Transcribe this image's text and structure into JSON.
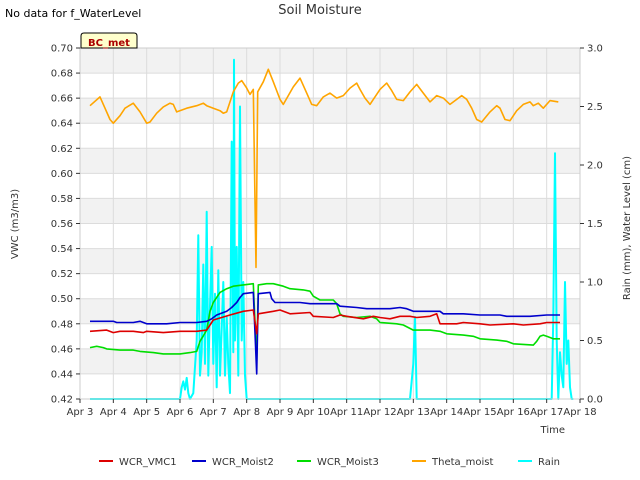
{
  "header": {
    "nodata_note": "No data for f_WaterLevel",
    "badge": "BC_met"
  },
  "chart_data": {
    "type": "line",
    "title": "Soil Moisture",
    "xlabel": "Time",
    "ylabel": "VWC (m3/m3)",
    "y2label": "Rain (mm), Water Level (cm)",
    "xlim": [
      0,
      15
    ],
    "ylim": [
      0.42,
      0.7
    ],
    "y2lim": [
      0.0,
      3.0
    ],
    "x_ticks": [
      "Apr 3",
      "Apr 4",
      "Apr 5",
      "Apr 6",
      "Apr 7",
      "Apr 8",
      "Apr 9",
      "Apr 10",
      "Apr 11",
      "Apr 12",
      "Apr 13",
      "Apr 14",
      "Apr 15",
      "Apr 16",
      "Apr 17",
      "Apr 18"
    ],
    "y_ticks": [
      0.42,
      0.44,
      0.46,
      0.48,
      0.5,
      0.52,
      0.54,
      0.56,
      0.58,
      0.6,
      0.62,
      0.64,
      0.66,
      0.68,
      0.7
    ],
    "y2_ticks": [
      0.0,
      0.5,
      1.0,
      1.5,
      2.0,
      2.5,
      3.0
    ],
    "grid": true,
    "legend_position": "bottom",
    "series": [
      {
        "name": "WCR_VMC1",
        "color": "#dd0000",
        "axis": "left",
        "points": [
          [
            0.3,
            0.474
          ],
          [
            0.8,
            0.475
          ],
          [
            1.0,
            0.473
          ],
          [
            1.2,
            0.474
          ],
          [
            1.6,
            0.474
          ],
          [
            1.9,
            0.473
          ],
          [
            2.0,
            0.474
          ],
          [
            2.5,
            0.473
          ],
          [
            3.0,
            0.474
          ],
          [
            3.5,
            0.474
          ],
          [
            3.8,
            0.475
          ],
          [
            4.0,
            0.483
          ],
          [
            4.5,
            0.487
          ],
          [
            4.9,
            0.49
          ],
          [
            5.2,
            0.491
          ],
          [
            5.3,
            0.472
          ],
          [
            5.35,
            0.488
          ],
          [
            5.8,
            0.49
          ],
          [
            6.0,
            0.491
          ],
          [
            6.3,
            0.488
          ],
          [
            6.9,
            0.489
          ],
          [
            7.0,
            0.486
          ],
          [
            7.6,
            0.485
          ],
          [
            7.8,
            0.487
          ],
          [
            8.0,
            0.486
          ],
          [
            8.5,
            0.484
          ],
          [
            8.8,
            0.486
          ],
          [
            9.0,
            0.485
          ],
          [
            9.3,
            0.484
          ],
          [
            9.6,
            0.486
          ],
          [
            9.9,
            0.486
          ],
          [
            10.1,
            0.485
          ],
          [
            10.5,
            0.486
          ],
          [
            10.7,
            0.488
          ],
          [
            10.8,
            0.48
          ],
          [
            11.3,
            0.48
          ],
          [
            11.5,
            0.481
          ],
          [
            12.0,
            0.48
          ],
          [
            12.3,
            0.479
          ],
          [
            13.0,
            0.48
          ],
          [
            13.3,
            0.479
          ],
          [
            13.8,
            0.48
          ],
          [
            14.0,
            0.481
          ],
          [
            14.4,
            0.481
          ]
        ]
      },
      {
        "name": "WCR_Moist2",
        "color": "#0000cc",
        "axis": "left",
        "points": [
          [
            0.3,
            0.482
          ],
          [
            1.0,
            0.482
          ],
          [
            1.1,
            0.481
          ],
          [
            1.6,
            0.481
          ],
          [
            1.8,
            0.482
          ],
          [
            2.0,
            0.48
          ],
          [
            2.6,
            0.48
          ],
          [
            3.0,
            0.481
          ],
          [
            3.5,
            0.481
          ],
          [
            3.8,
            0.482
          ],
          [
            3.95,
            0.484
          ],
          [
            4.1,
            0.487
          ],
          [
            4.4,
            0.49
          ],
          [
            4.55,
            0.493
          ],
          [
            4.7,
            0.497
          ],
          [
            4.8,
            0.501
          ],
          [
            4.9,
            0.504
          ],
          [
            5.2,
            0.505
          ],
          [
            5.3,
            0.44
          ],
          [
            5.35,
            0.504
          ],
          [
            5.7,
            0.505
          ],
          [
            5.75,
            0.5
          ],
          [
            5.85,
            0.497
          ],
          [
            6.6,
            0.497
          ],
          [
            6.9,
            0.496
          ],
          [
            7.7,
            0.496
          ],
          [
            7.8,
            0.494
          ],
          [
            8.3,
            0.493
          ],
          [
            8.6,
            0.492
          ],
          [
            9.3,
            0.492
          ],
          [
            9.6,
            0.493
          ],
          [
            9.8,
            0.492
          ],
          [
            10.0,
            0.49
          ],
          [
            10.8,
            0.49
          ],
          [
            10.9,
            0.488
          ],
          [
            11.5,
            0.488
          ],
          [
            12.0,
            0.487
          ],
          [
            12.6,
            0.487
          ],
          [
            12.8,
            0.486
          ],
          [
            13.5,
            0.486
          ],
          [
            14.0,
            0.487
          ],
          [
            14.4,
            0.487
          ]
        ]
      },
      {
        "name": "WCR_Moist3",
        "color": "#00dd00",
        "axis": "left",
        "points": [
          [
            0.3,
            0.461
          ],
          [
            0.5,
            0.462
          ],
          [
            0.7,
            0.461
          ],
          [
            0.8,
            0.46
          ],
          [
            1.2,
            0.459
          ],
          [
            1.6,
            0.459
          ],
          [
            1.8,
            0.458
          ],
          [
            2.2,
            0.457
          ],
          [
            2.5,
            0.456
          ],
          [
            3.0,
            0.456
          ],
          [
            3.3,
            0.457
          ],
          [
            3.5,
            0.458
          ],
          [
            3.6,
            0.466
          ],
          [
            3.8,
            0.475
          ],
          [
            3.9,
            0.49
          ],
          [
            4.0,
            0.497
          ],
          [
            4.2,
            0.505
          ],
          [
            4.4,
            0.508
          ],
          [
            4.6,
            0.51
          ],
          [
            4.9,
            0.511
          ],
          [
            5.2,
            0.512
          ],
          [
            5.3,
            0.45
          ],
          [
            5.35,
            0.511
          ],
          [
            5.6,
            0.512
          ],
          [
            5.8,
            0.512
          ],
          [
            6.1,
            0.51
          ],
          [
            6.3,
            0.508
          ],
          [
            6.7,
            0.507
          ],
          [
            6.9,
            0.506
          ],
          [
            7.0,
            0.502
          ],
          [
            7.2,
            0.499
          ],
          [
            7.6,
            0.499
          ],
          [
            7.7,
            0.496
          ],
          [
            7.8,
            0.488
          ],
          [
            7.9,
            0.486
          ],
          [
            8.3,
            0.485
          ],
          [
            8.7,
            0.486
          ],
          [
            8.9,
            0.484
          ],
          [
            9.0,
            0.481
          ],
          [
            9.5,
            0.48
          ],
          [
            9.7,
            0.479
          ],
          [
            10.0,
            0.475
          ],
          [
            10.5,
            0.475
          ],
          [
            10.8,
            0.474
          ],
          [
            11.0,
            0.472
          ],
          [
            11.5,
            0.471
          ],
          [
            11.8,
            0.47
          ],
          [
            12.0,
            0.468
          ],
          [
            12.5,
            0.467
          ],
          [
            12.8,
            0.466
          ],
          [
            13.0,
            0.464
          ],
          [
            13.6,
            0.463
          ],
          [
            13.7,
            0.466
          ],
          [
            13.8,
            0.47
          ],
          [
            13.9,
            0.471
          ],
          [
            14.0,
            0.47
          ],
          [
            14.2,
            0.468
          ],
          [
            14.4,
            0.468
          ]
        ]
      },
      {
        "name": "Theta_moist",
        "color": "#ffa500",
        "axis": "left",
        "points": [
          [
            0.3,
            0.654
          ],
          [
            0.6,
            0.661
          ],
          [
            0.75,
            0.652
          ],
          [
            0.9,
            0.643
          ],
          [
            1.0,
            0.64
          ],
          [
            1.2,
            0.646
          ],
          [
            1.35,
            0.652
          ],
          [
            1.6,
            0.656
          ],
          [
            1.8,
            0.649
          ],
          [
            2.0,
            0.64
          ],
          [
            2.1,
            0.641
          ],
          [
            2.3,
            0.648
          ],
          [
            2.5,
            0.653
          ],
          [
            2.7,
            0.656
          ],
          [
            2.8,
            0.655
          ],
          [
            2.9,
            0.649
          ],
          [
            3.2,
            0.652
          ],
          [
            3.5,
            0.654
          ],
          [
            3.7,
            0.656
          ],
          [
            3.8,
            0.654
          ],
          [
            4.0,
            0.652
          ],
          [
            4.2,
            0.65
          ],
          [
            4.3,
            0.648
          ],
          [
            4.4,
            0.649
          ],
          [
            4.6,
            0.665
          ],
          [
            4.75,
            0.672
          ],
          [
            4.85,
            0.674
          ],
          [
            5.0,
            0.668
          ],
          [
            5.1,
            0.663
          ],
          [
            5.2,
            0.667
          ],
          [
            5.28,
            0.525
          ],
          [
            5.33,
            0.665
          ],
          [
            5.5,
            0.673
          ],
          [
            5.65,
            0.683
          ],
          [
            5.8,
            0.673
          ],
          [
            6.0,
            0.659
          ],
          [
            6.1,
            0.655
          ],
          [
            6.25,
            0.662
          ],
          [
            6.4,
            0.669
          ],
          [
            6.6,
            0.676
          ],
          [
            6.8,
            0.664
          ],
          [
            6.95,
            0.655
          ],
          [
            7.1,
            0.654
          ],
          [
            7.3,
            0.661
          ],
          [
            7.5,
            0.664
          ],
          [
            7.7,
            0.66
          ],
          [
            7.9,
            0.662
          ],
          [
            8.1,
            0.668
          ],
          [
            8.3,
            0.672
          ],
          [
            8.4,
            0.667
          ],
          [
            8.55,
            0.66
          ],
          [
            8.7,
            0.655
          ],
          [
            8.8,
            0.659
          ],
          [
            9.0,
            0.667
          ],
          [
            9.2,
            0.672
          ],
          [
            9.35,
            0.666
          ],
          [
            9.5,
            0.659
          ],
          [
            9.7,
            0.658
          ],
          [
            9.9,
            0.665
          ],
          [
            10.1,
            0.671
          ],
          [
            10.3,
            0.664
          ],
          [
            10.5,
            0.657
          ],
          [
            10.7,
            0.662
          ],
          [
            10.9,
            0.66
          ],
          [
            11.1,
            0.655
          ],
          [
            11.3,
            0.659
          ],
          [
            11.45,
            0.662
          ],
          [
            11.6,
            0.659
          ],
          [
            11.75,
            0.652
          ],
          [
            11.9,
            0.643
          ],
          [
            12.05,
            0.641
          ],
          [
            12.3,
            0.649
          ],
          [
            12.5,
            0.654
          ],
          [
            12.6,
            0.652
          ],
          [
            12.75,
            0.643
          ],
          [
            12.9,
            0.642
          ],
          [
            13.1,
            0.65
          ],
          [
            13.3,
            0.655
          ],
          [
            13.5,
            0.657
          ],
          [
            13.6,
            0.654
          ],
          [
            13.75,
            0.656
          ],
          [
            13.9,
            0.652
          ],
          [
            14.1,
            0.658
          ],
          [
            14.35,
            0.657
          ]
        ]
      },
      {
        "name": "Rain",
        "color": "#00ffff",
        "axis": "right",
        "points": [
          [
            0.3,
            0.0
          ],
          [
            3.0,
            0.0
          ],
          [
            3.05,
            0.1
          ],
          [
            3.1,
            0.15
          ],
          [
            3.15,
            0.08
          ],
          [
            3.2,
            0.18
          ],
          [
            3.25,
            0.05
          ],
          [
            3.3,
            0.0
          ],
          [
            3.4,
            0.05
          ],
          [
            3.5,
            0.5
          ],
          [
            3.55,
            1.4
          ],
          [
            3.6,
            0.2
          ],
          [
            3.65,
            0.4
          ],
          [
            3.7,
            1.15
          ],
          [
            3.75,
            0.3
          ],
          [
            3.8,
            1.6
          ],
          [
            3.85,
            0.2
          ],
          [
            3.9,
            0.8
          ],
          [
            3.95,
            1.3
          ],
          [
            4.0,
            0.3
          ],
          [
            4.05,
            0.9
          ],
          [
            4.1,
            0.1
          ],
          [
            4.15,
            1.1
          ],
          [
            4.2,
            0.2
          ],
          [
            4.25,
            0.6
          ],
          [
            4.3,
            1.0
          ],
          [
            4.35,
            0.2
          ],
          [
            4.4,
            0.7
          ],
          [
            4.45,
            0.3
          ],
          [
            4.5,
            0.05
          ],
          [
            4.55,
            2.2
          ],
          [
            4.6,
            0.4
          ],
          [
            4.62,
            2.9
          ],
          [
            4.65,
            0.5
          ],
          [
            4.7,
            1.3
          ],
          [
            4.75,
            0.2
          ],
          [
            4.8,
            2.5
          ],
          [
            4.85,
            0.5
          ],
          [
            4.9,
            1.0
          ],
          [
            4.95,
            0.2
          ],
          [
            5.0,
            0.0
          ],
          [
            9.9,
            0.0
          ],
          [
            10.0,
            0.3
          ],
          [
            10.05,
            0.7
          ],
          [
            10.1,
            0.0
          ],
          [
            14.15,
            0.0
          ],
          [
            14.2,
            0.7
          ],
          [
            14.25,
            2.1
          ],
          [
            14.3,
            0.5
          ],
          [
            14.35,
            0.0
          ],
          [
            14.4,
            0.4
          ],
          [
            14.45,
            0.2
          ],
          [
            14.5,
            0.1
          ],
          [
            14.55,
            1.0
          ],
          [
            14.6,
            0.3
          ],
          [
            14.65,
            0.5
          ],
          [
            14.7,
            0.1
          ],
          [
            14.75,
            0.0
          ],
          [
            14.8,
            0.0
          ]
        ]
      }
    ]
  }
}
